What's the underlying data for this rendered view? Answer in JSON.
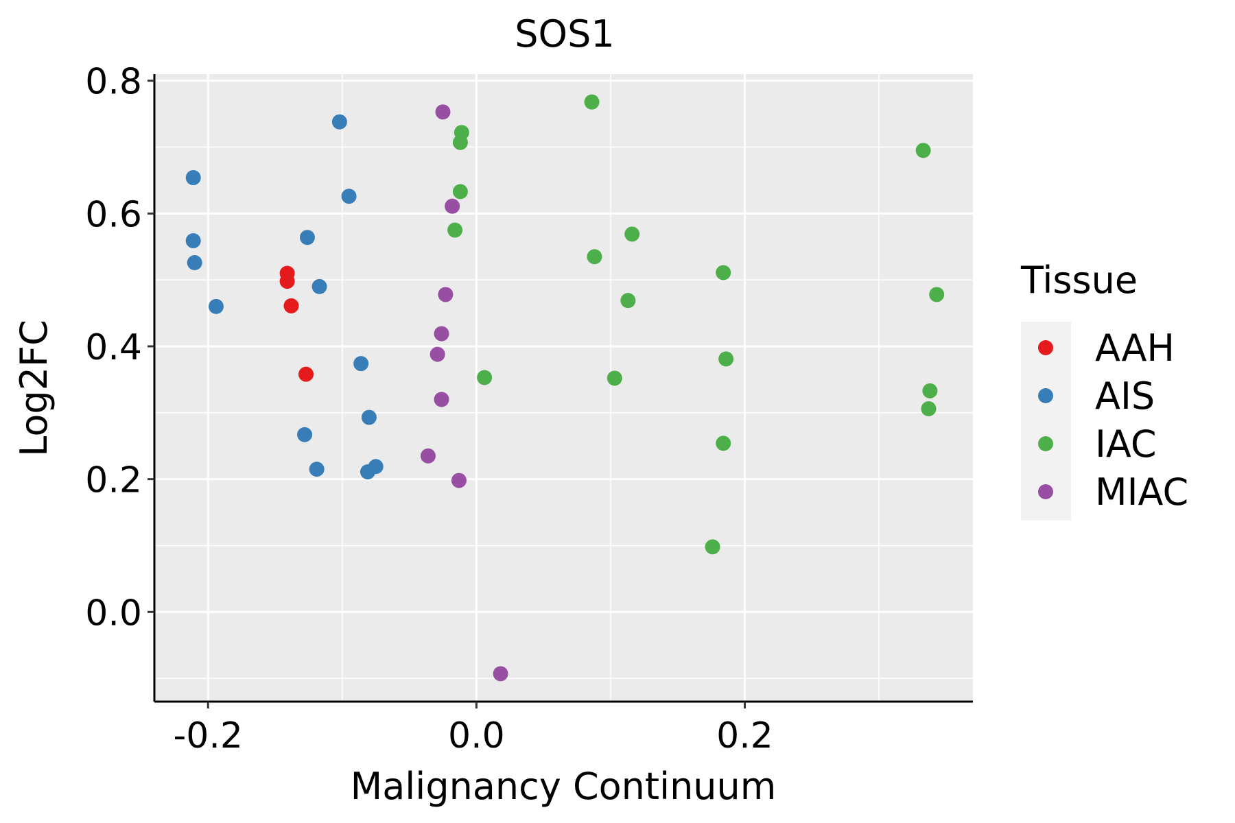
{
  "chart_data": {
    "type": "scatter",
    "title": "SOS1",
    "xlabel": "Malignancy Continuum",
    "ylabel": "Log2FC",
    "xlim": [
      -0.24,
      0.37
    ],
    "ylim": [
      -0.135,
      0.81
    ],
    "x_ticks": [
      -0.2,
      0.0,
      0.2
    ],
    "x_tick_labels": [
      "-0.2",
      "0.0",
      "0.2"
    ],
    "x_minor_ticks": [
      -0.1,
      0.1,
      0.3
    ],
    "y_ticks": [
      0.0,
      0.2,
      0.4,
      0.6,
      0.8
    ],
    "y_tick_labels": [
      "0.0",
      "0.2",
      "0.4",
      "0.6",
      "0.8"
    ],
    "y_minor_ticks": [
      -0.1,
      0.1,
      0.3,
      0.5,
      0.7
    ],
    "grid": true,
    "legend": {
      "title": "Tissue",
      "position": "right"
    },
    "series": [
      {
        "name": "AAH",
        "color": "#E41A1C",
        "points": [
          {
            "x": -0.141,
            "y": 0.51
          },
          {
            "x": -0.141,
            "y": 0.498
          },
          {
            "x": -0.138,
            "y": 0.461
          },
          {
            "x": -0.127,
            "y": 0.358
          }
        ]
      },
      {
        "name": "AIS",
        "color": "#377EB8",
        "points": [
          {
            "x": -0.211,
            "y": 0.654
          },
          {
            "x": -0.211,
            "y": 0.559
          },
          {
            "x": -0.21,
            "y": 0.526
          },
          {
            "x": -0.194,
            "y": 0.46
          },
          {
            "x": -0.126,
            "y": 0.564
          },
          {
            "x": -0.117,
            "y": 0.49
          },
          {
            "x": -0.128,
            "y": 0.267
          },
          {
            "x": -0.119,
            "y": 0.215
          },
          {
            "x": -0.102,
            "y": 0.738
          },
          {
            "x": -0.095,
            "y": 0.626
          },
          {
            "x": -0.086,
            "y": 0.374
          },
          {
            "x": -0.08,
            "y": 0.293
          },
          {
            "x": -0.081,
            "y": 0.211
          },
          {
            "x": -0.075,
            "y": 0.219
          }
        ]
      },
      {
        "name": "IAC",
        "color": "#4DAF4A",
        "points": [
          {
            "x": 0.086,
            "y": 0.768
          },
          {
            "x": -0.011,
            "y": 0.722
          },
          {
            "x": -0.012,
            "y": 0.707
          },
          {
            "x": -0.012,
            "y": 0.633
          },
          {
            "x": -0.016,
            "y": 0.575
          },
          {
            "x": 0.116,
            "y": 0.569
          },
          {
            "x": 0.088,
            "y": 0.535
          },
          {
            "x": 0.113,
            "y": 0.469
          },
          {
            "x": 0.184,
            "y": 0.511
          },
          {
            "x": 0.186,
            "y": 0.381
          },
          {
            "x": 0.006,
            "y": 0.353
          },
          {
            "x": 0.103,
            "y": 0.352
          },
          {
            "x": 0.184,
            "y": 0.254
          },
          {
            "x": 0.176,
            "y": 0.098
          },
          {
            "x": 0.333,
            "y": 0.695
          },
          {
            "x": 0.343,
            "y": 0.478
          },
          {
            "x": 0.338,
            "y": 0.333
          },
          {
            "x": 0.337,
            "y": 0.306
          }
        ]
      },
      {
        "name": "MIAC",
        "color": "#984EA3",
        "points": [
          {
            "x": -0.025,
            "y": 0.753
          },
          {
            "x": -0.018,
            "y": 0.611
          },
          {
            "x": -0.023,
            "y": 0.478
          },
          {
            "x": -0.026,
            "y": 0.419
          },
          {
            "x": -0.029,
            "y": 0.388
          },
          {
            "x": -0.026,
            "y": 0.32
          },
          {
            "x": -0.036,
            "y": 0.235
          },
          {
            "x": -0.013,
            "y": 0.198
          },
          {
            "x": 0.018,
            "y": -0.093
          }
        ]
      }
    ]
  }
}
